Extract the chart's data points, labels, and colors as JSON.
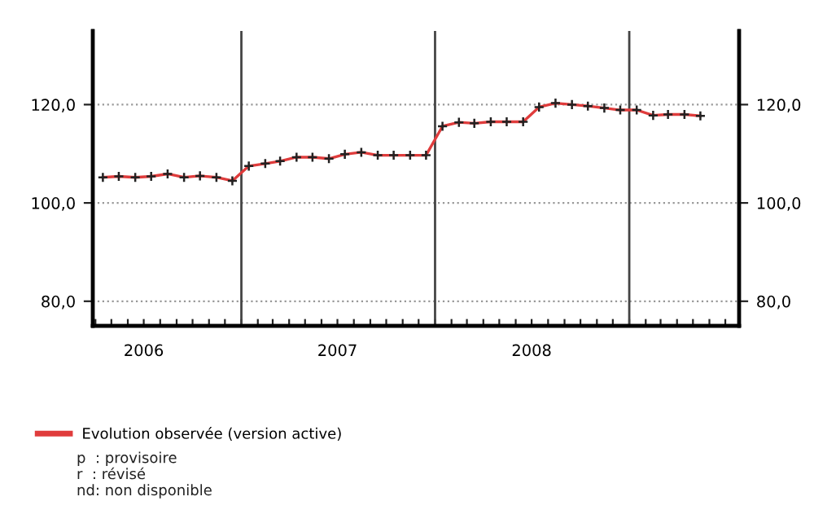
{
  "chart_data": {
    "type": "line",
    "x": [
      "2006-04-15",
      "2006-05-15",
      "2006-06-15",
      "2006-07-15",
      "2006-08-15",
      "2006-09-15",
      "2006-10-15",
      "2006-11-15",
      "2006-12-15",
      "2007-01-15",
      "2007-02-15",
      "2007-03-15",
      "2007-04-15",
      "2007-05-15",
      "2007-06-15",
      "2007-07-15",
      "2007-08-15",
      "2007-09-15",
      "2007-10-15",
      "2007-11-15",
      "2007-12-15",
      "2008-01-15",
      "2008-02-15",
      "2008-03-15",
      "2008-04-15",
      "2008-05-15",
      "2008-06-15",
      "2008-07-15",
      "2008-08-15",
      "2008-09-15",
      "2008-10-15",
      "2008-11-15",
      "2008-12-15",
      "2009-01-15",
      "2009-02-15",
      "2009-03-15",
      "2009-04-15",
      "2009-05-15"
    ],
    "series": [
      {
        "name": "Evolution observée (version active)",
        "color": "#e03c3c",
        "values": [
          105.2,
          105.4,
          105.2,
          105.4,
          105.9,
          105.2,
          105.5,
          105.2,
          104.5,
          107.5,
          108.0,
          108.5,
          109.3,
          109.3,
          109.0,
          109.9,
          110.3,
          109.7,
          109.7,
          109.7,
          109.7,
          115.6,
          116.4,
          116.2,
          116.5,
          116.5,
          116.5,
          119.5,
          120.3,
          120.0,
          119.7,
          119.3,
          118.9,
          118.9,
          117.8,
          118.0,
          118.0,
          117.7
        ]
      }
    ],
    "xlim": [
      "2006-03-27",
      "2009-07-27"
    ],
    "xticks": [
      {
        "value": "2006-04-01",
        "label": null
      },
      {
        "value": "2006-05-01",
        "label": null
      },
      {
        "value": "2006-06-01",
        "label": null
      },
      {
        "value": "2006-07-01",
        "label": "2006"
      },
      {
        "value": "2006-08-01",
        "label": null
      },
      {
        "value": "2006-09-01",
        "label": null
      },
      {
        "value": "2006-10-01",
        "label": null
      },
      {
        "value": "2006-11-01",
        "label": null
      },
      {
        "value": "2006-12-01",
        "label": null
      },
      {
        "value": "2007-01-01",
        "label": null
      },
      {
        "value": "2007-02-01",
        "label": null
      },
      {
        "value": "2007-03-01",
        "label": null
      },
      {
        "value": "2007-04-01",
        "label": null
      },
      {
        "value": "2007-05-01",
        "label": null
      },
      {
        "value": "2007-06-01",
        "label": null
      },
      {
        "value": "2007-07-01",
        "label": "2007"
      },
      {
        "value": "2007-08-01",
        "label": null
      },
      {
        "value": "2007-09-01",
        "label": null
      },
      {
        "value": "2007-10-01",
        "label": null
      },
      {
        "value": "2007-11-01",
        "label": null
      },
      {
        "value": "2007-12-01",
        "label": null
      },
      {
        "value": "2008-01-01",
        "label": null
      },
      {
        "value": "2008-02-01",
        "label": null
      },
      {
        "value": "2008-03-01",
        "label": null
      },
      {
        "value": "2008-04-01",
        "label": null
      },
      {
        "value": "2008-05-01",
        "label": null
      },
      {
        "value": "2008-06-01",
        "label": null
      },
      {
        "value": "2008-07-01",
        "label": "2008"
      },
      {
        "value": "2008-08-01",
        "label": null
      },
      {
        "value": "2008-09-01",
        "label": null
      },
      {
        "value": "2008-10-01",
        "label": null
      },
      {
        "value": "2008-11-01",
        "label": null
      },
      {
        "value": "2008-12-01",
        "label": null
      },
      {
        "value": "2009-01-01",
        "label": null
      },
      {
        "value": "2009-02-01",
        "label": null
      },
      {
        "value": "2009-03-01",
        "label": null
      },
      {
        "value": "2009-04-01",
        "label": null
      },
      {
        "value": "2009-05-01",
        "label": null
      },
      {
        "value": "2009-06-01",
        "label": null
      },
      {
        "value": "2009-07-01",
        "label": null
      }
    ],
    "ylim": [
      75,
      135
    ],
    "yticks": [
      {
        "value": 80,
        "label": "80,0"
      },
      {
        "value": 100,
        "label": "100,0"
      },
      {
        "value": 120,
        "label": "120,0"
      }
    ],
    "y2lim": [
      75,
      135
    ],
    "y2ticks": [
      {
        "value": 80,
        "label": "80,0"
      },
      {
        "value": 100,
        "label": "100,0"
      },
      {
        "value": 120,
        "label": "120,0"
      }
    ],
    "ref_lines": [
      {
        "axis": "x",
        "value": "2007-01-01",
        "label": null,
        "color": "#444444"
      },
      {
        "axis": "x",
        "value": "2008-01-01",
        "label": null,
        "color": "#444444"
      },
      {
        "axis": "x",
        "value": "2009-01-01",
        "label": null,
        "color": "#444444"
      }
    ],
    "grid": "y",
    "marker": "cross",
    "line_style": "solid",
    "legend": "bottom",
    "annotations": [
      "p  : provisoire",
      "r  : révisé",
      "nd: non disponible"
    ]
  }
}
